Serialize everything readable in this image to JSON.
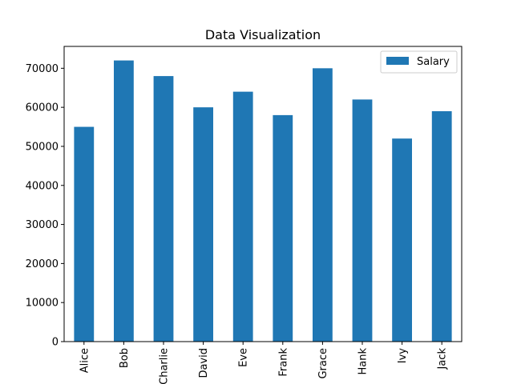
{
  "chart_data": {
    "type": "bar",
    "title": "Data Visualization",
    "xlabel": "",
    "ylabel": "",
    "categories": [
      "Alice",
      "Bob",
      "Charlie",
      "David",
      "Eve",
      "Frank",
      "Grace",
      "Hank",
      "Ivy",
      "Jack"
    ],
    "series": [
      {
        "name": "Salary",
        "values": [
          55000,
          72000,
          68000,
          60000,
          64000,
          58000,
          70000,
          62000,
          52000,
          59000
        ],
        "color": "#1f77b4"
      }
    ],
    "ylim": [
      0,
      75600
    ],
    "yticks": [
      0,
      10000,
      20000,
      30000,
      40000,
      50000,
      60000,
      70000
    ],
    "grid": false,
    "legend": {
      "position": "top-right",
      "label": "Salary"
    }
  }
}
